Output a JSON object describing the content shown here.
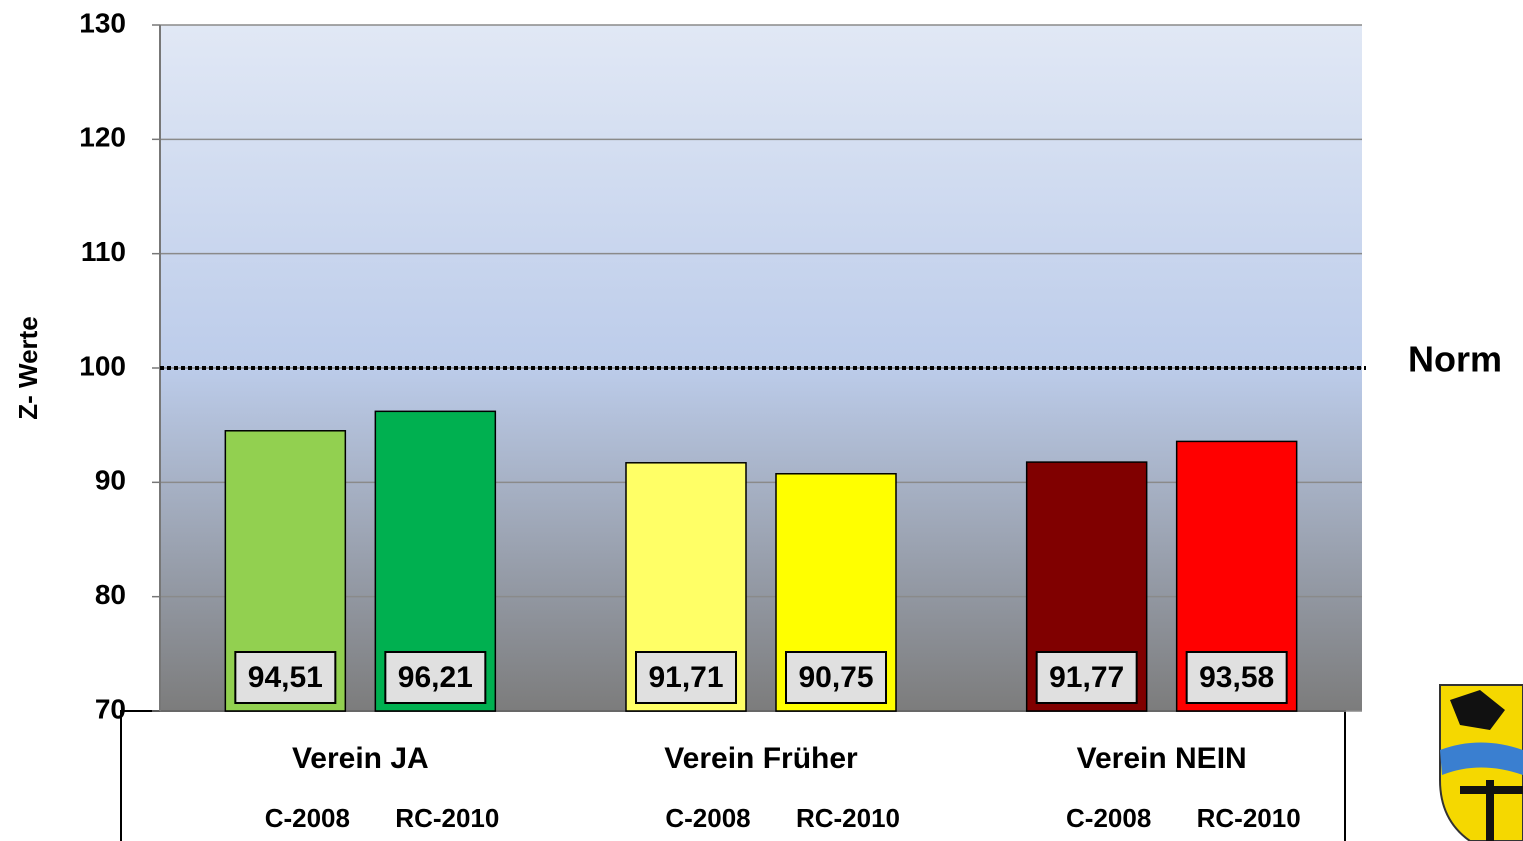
{
  "chart_data": {
    "type": "bar",
    "ylabel": "Z- Werte",
    "categories": [
      "Verein JA",
      "Verein Früher",
      "Verein NEIN"
    ],
    "series": [
      {
        "name": "C-2008",
        "colors": [
          "#92d050",
          "#ffff66",
          "#800000"
        ],
        "values": [
          94.51,
          91.71,
          91.77
        ],
        "value_labels": [
          "94,51",
          "91,71",
          "91,77"
        ]
      },
      {
        "name": "RC-2010",
        "colors": [
          "#00b050",
          "#ffff00",
          "#ff0000"
        ],
        "values": [
          96.21,
          90.75,
          93.58
        ],
        "value_labels": [
          "96,21",
          "90,75",
          "93,58"
        ]
      }
    ],
    "ylim": [
      70,
      130
    ],
    "yticks": [
      70,
      80,
      90,
      100,
      110,
      120,
      130
    ],
    "grid": true,
    "reference_line": {
      "value": 100,
      "label": "Norm"
    }
  }
}
